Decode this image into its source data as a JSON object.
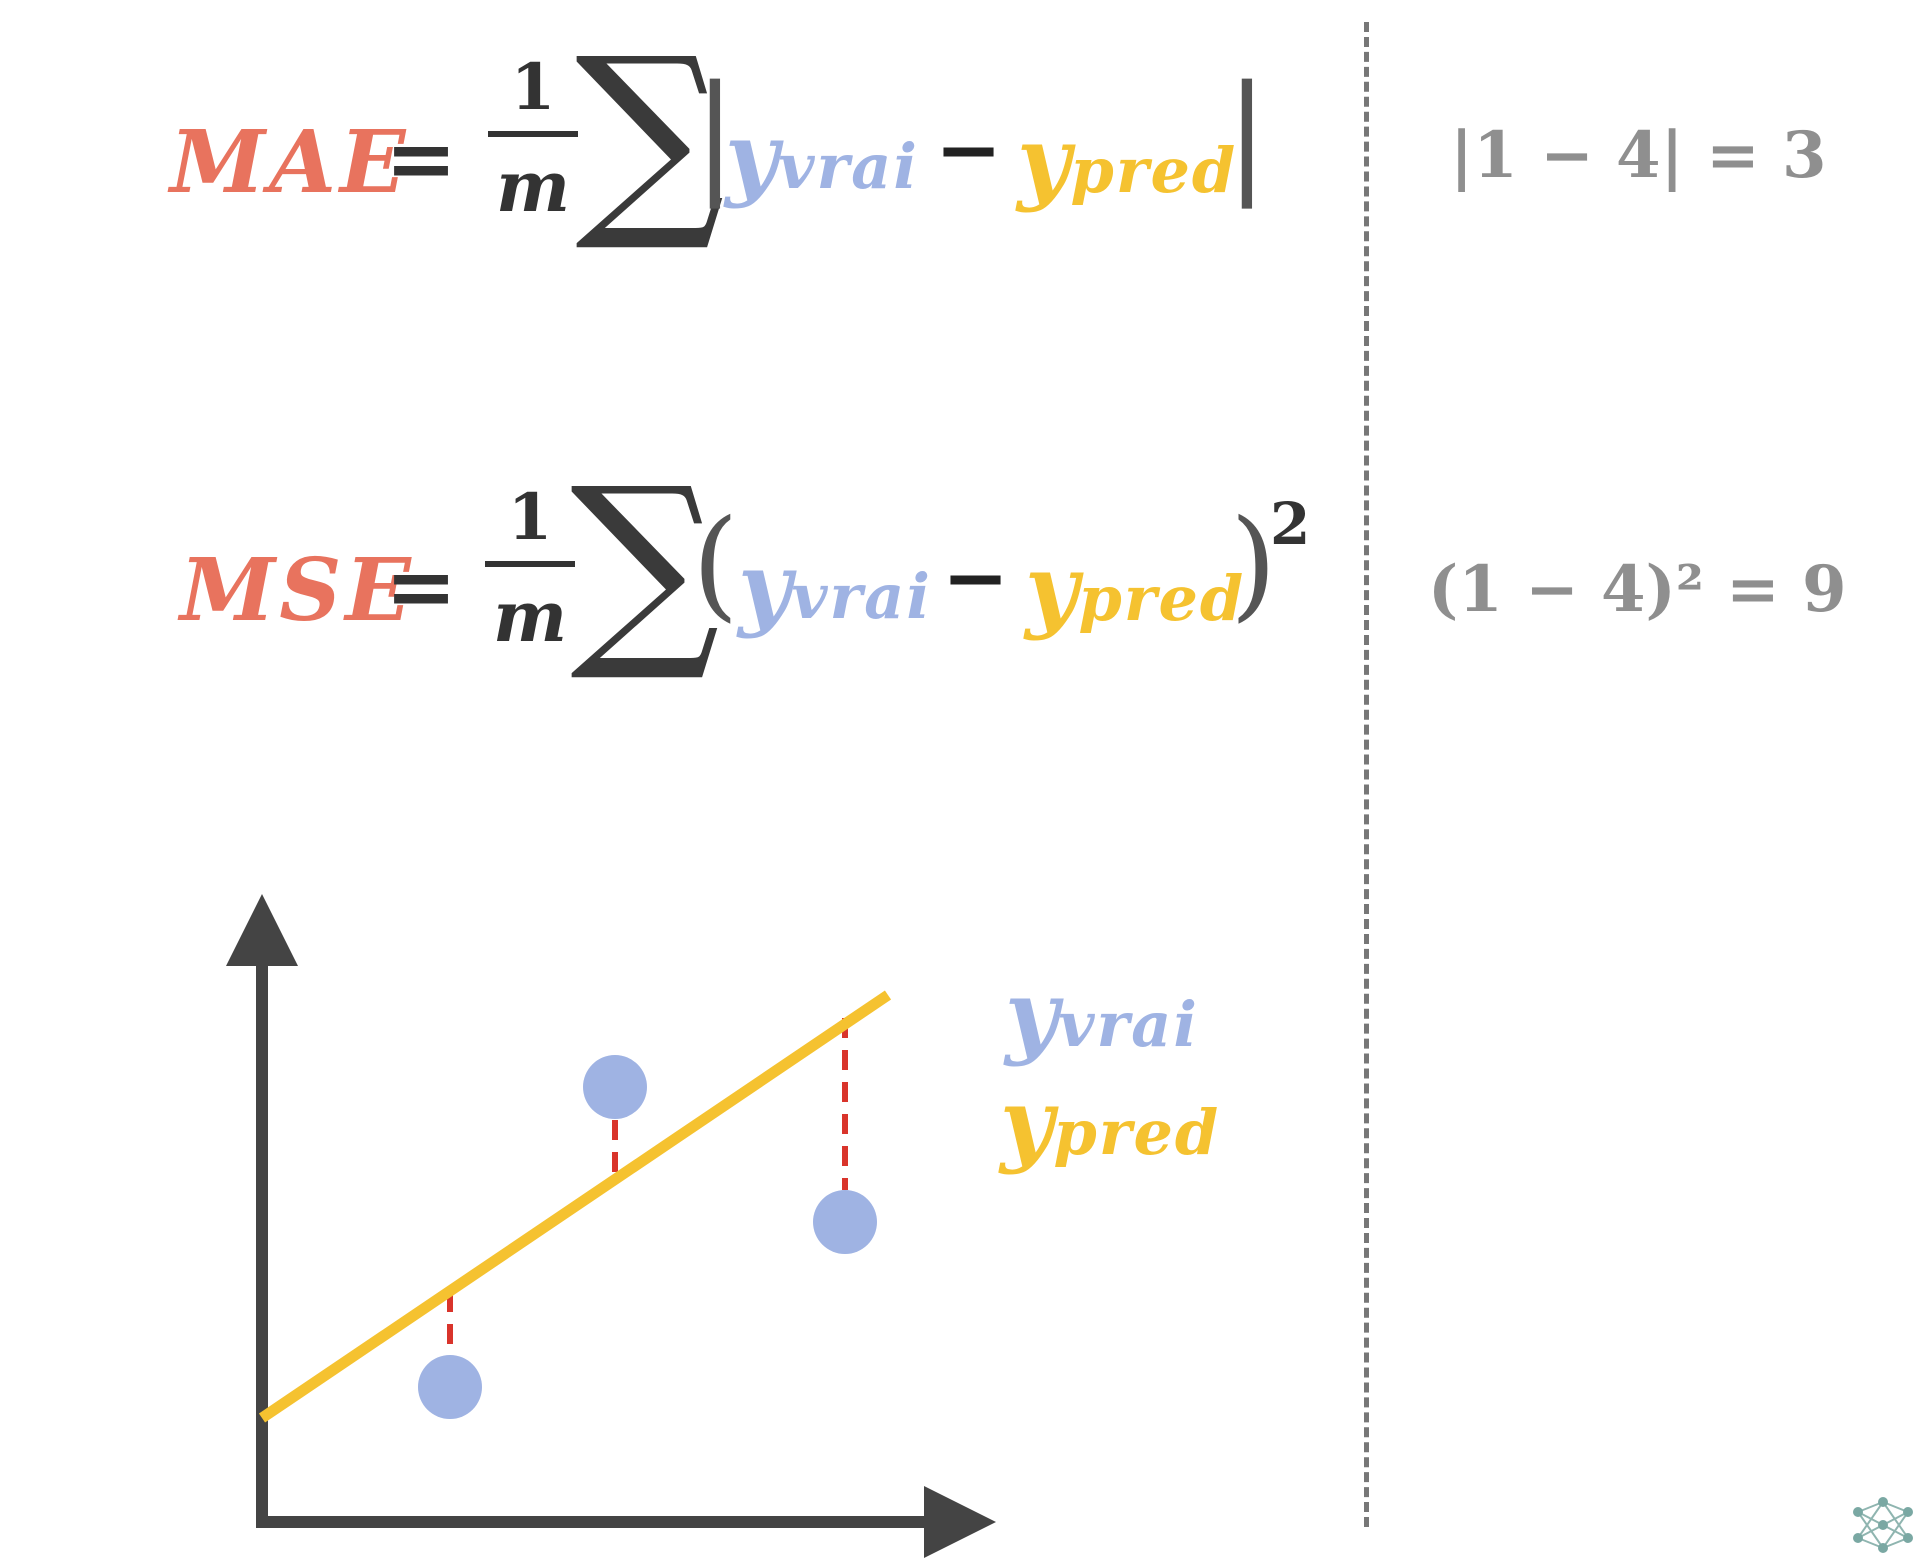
{
  "colors": {
    "metric_name": "#e8735e",
    "y_true": "#9fb3e3",
    "y_pred": "#f5c230",
    "operator": "#333333",
    "example": "#8f8f8f",
    "residual": "#d9342b",
    "axis": "#444444",
    "divider": "#777777"
  },
  "mae": {
    "name": "MAE",
    "equals": "=",
    "numerator": "1",
    "denominator": "m",
    "sum": "∑",
    "left_delim": "|",
    "y_true": "y",
    "y_true_sub": "vrai",
    "minus": "−",
    "y_pred": "y",
    "y_pred_sub": "pred",
    "right_delim": "|",
    "example": "|1 − 4| = 3"
  },
  "mse": {
    "name": "MSE",
    "equals": "=",
    "numerator": "1",
    "denominator": "m",
    "sum": "∑",
    "left_delim": "(",
    "y_true": "y",
    "y_true_sub": "vrai",
    "minus": "−",
    "y_pred": "y",
    "y_pred_sub": "pred",
    "right_delim": ")",
    "exponent": "2",
    "example": "(1 − 4)² = 9"
  },
  "legend": {
    "y_true": "y",
    "y_true_sub": "vrai",
    "y_pred": "y",
    "y_pred_sub": "pred"
  },
  "icons": {
    "axes": "axis-arrows-icon",
    "corner": "neural-network-icon"
  }
}
